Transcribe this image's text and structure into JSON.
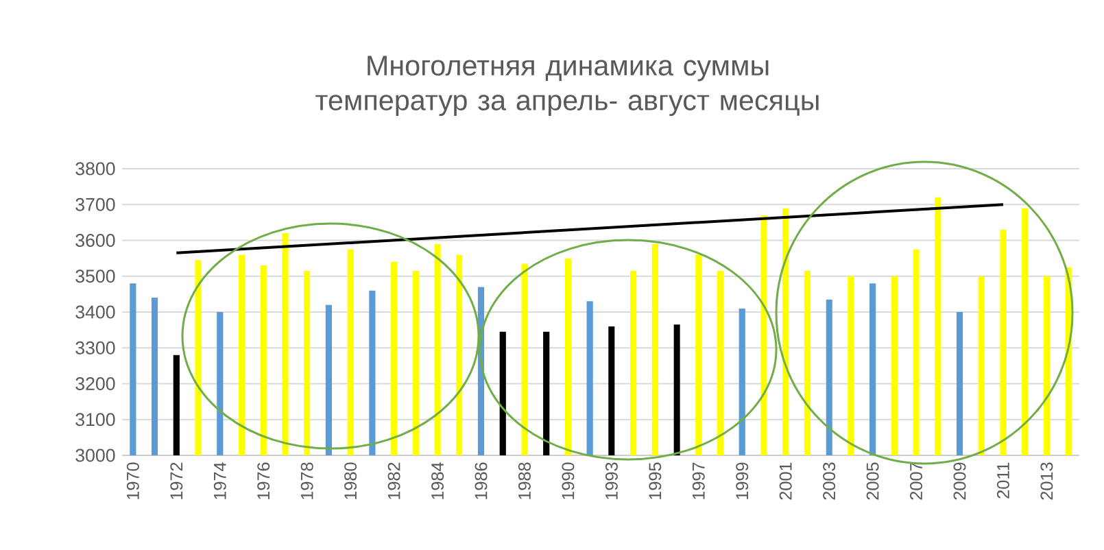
{
  "chart_data": {
    "type": "bar",
    "title": "Многолетняя динамика суммы температур за апрель- август месяцы",
    "categories": [
      "1970",
      null,
      "1972",
      null,
      "1974",
      null,
      "1976",
      null,
      "1978",
      null,
      "1980",
      null,
      "1982",
      null,
      "1984",
      null,
      "1986",
      null,
      "1988",
      null,
      "1990",
      null,
      "1993",
      null,
      "1995",
      null,
      "1997",
      null,
      "1999",
      null,
      "2001",
      null,
      "2003",
      null,
      "2005",
      null,
      "2007",
      null,
      "2009",
      null,
      "2011",
      null,
      "2013",
      null
    ],
    "series": [
      {
        "values": [
          3480,
          3440,
          3280,
          3545,
          3400,
          3560,
          3530,
          3620,
          3515,
          3420,
          3575,
          3460,
          3540,
          3515,
          3590,
          3560,
          3470,
          3345,
          3535,
          3345,
          3550,
          3430,
          3360,
          3515,
          3590,
          3365,
          3560,
          3515,
          3410,
          3670,
          3690,
          3515,
          3435,
          3500,
          3480,
          3500,
          3575,
          3720,
          3400,
          3500,
          3630,
          3690,
          3500,
          3525
        ],
        "colors": [
          "#5b9bd5",
          "#5b9bd5",
          "#000000",
          "#ffff00",
          "#5b9bd5",
          "#ffff00",
          "#ffff00",
          "#ffff00",
          "#ffff00",
          "#5b9bd5",
          "#ffff00",
          "#5b9bd5",
          "#ffff00",
          "#ffff00",
          "#ffff00",
          "#ffff00",
          "#5b9bd5",
          "#000000",
          "#ffff00",
          "#000000",
          "#ffff00",
          "#5b9bd5",
          "#000000",
          "#ffff00",
          "#ffff00",
          "#000000",
          "#ffff00",
          "#ffff00",
          "#5b9bd5",
          "#ffff00",
          "#ffff00",
          "#ffff00",
          "#5b9bd5",
          "#ffff00",
          "#5b9bd5",
          "#ffff00",
          "#ffff00",
          "#ffff00",
          "#5b9bd5",
          "#ffff00",
          "#ffff00",
          "#ffff00",
          "#ffff00",
          "#ffff00"
        ]
      },
      {
        "type": "line",
        "color": "#000000",
        "line_style": "solid",
        "values": [
          null,
          null,
          3565,
          null,
          null,
          null,
          null,
          null,
          null,
          null,
          null,
          null,
          null,
          null,
          null,
          null,
          null,
          null,
          null,
          null,
          null,
          null,
          null,
          null,
          null,
          null,
          null,
          null,
          null,
          null,
          null,
          null,
          null,
          null,
          null,
          null,
          null,
          null,
          null,
          null,
          3700,
          null,
          null,
          null
        ]
      }
    ],
    "ylim": [
      3000,
      3800
    ],
    "yticks": [
      3000,
      3100,
      3200,
      3300,
      3400,
      3500,
      3600,
      3700,
      3800
    ],
    "grid": "y"
  }
}
